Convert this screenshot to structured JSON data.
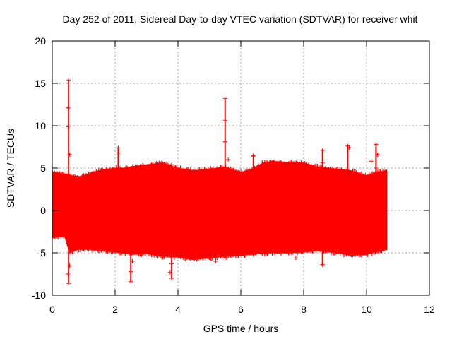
{
  "chart_data": {
    "type": "scatter",
    "title": "Day 252 of 2011, Sidereal Day-to-day VTEC variation (SDTVAR) for receiver whit",
    "xlabel": "GPS time / hours",
    "ylabel": "SDTVAR / TECUs",
    "xlim": [
      0,
      12
    ],
    "ylim": [
      -10,
      20
    ],
    "xticks": [
      0,
      2,
      4,
      6,
      8,
      10,
      12
    ],
    "yticks": [
      -10,
      -5,
      0,
      5,
      10,
      15,
      20
    ],
    "grid": true,
    "series_color": "#ff0000",
    "data_range_hours": [
      0,
      10.65
    ],
    "upper_envelope": [
      {
        "x": 0.0,
        "y": 4.6
      },
      {
        "x": 0.2,
        "y": 4.4
      },
      {
        "x": 0.45,
        "y": 4.3
      },
      {
        "x": 0.6,
        "y": 4.1
      },
      {
        "x": 0.9,
        "y": 4.0
      },
      {
        "x": 1.2,
        "y": 4.4
      },
      {
        "x": 1.6,
        "y": 4.8
      },
      {
        "x": 2.0,
        "y": 5.0
      },
      {
        "x": 2.3,
        "y": 5.0
      },
      {
        "x": 2.6,
        "y": 5.2
      },
      {
        "x": 3.0,
        "y": 5.4
      },
      {
        "x": 3.5,
        "y": 5.6
      },
      {
        "x": 4.0,
        "y": 5.0
      },
      {
        "x": 4.5,
        "y": 4.7
      },
      {
        "x": 5.0,
        "y": 4.9
      },
      {
        "x": 5.5,
        "y": 5.1
      },
      {
        "x": 6.0,
        "y": 4.5
      },
      {
        "x": 6.3,
        "y": 4.8
      },
      {
        "x": 6.7,
        "y": 5.6
      },
      {
        "x": 7.0,
        "y": 5.8
      },
      {
        "x": 7.5,
        "y": 5.7
      },
      {
        "x": 8.0,
        "y": 5.6
      },
      {
        "x": 8.5,
        "y": 5.1
      },
      {
        "x": 9.0,
        "y": 4.9
      },
      {
        "x": 9.5,
        "y": 4.7
      },
      {
        "x": 10.0,
        "y": 4.1
      },
      {
        "x": 10.3,
        "y": 4.5
      },
      {
        "x": 10.65,
        "y": 4.7
      }
    ],
    "lower_envelope": [
      {
        "x": 0.0,
        "y": -3.2
      },
      {
        "x": 0.4,
        "y": -3.1
      },
      {
        "x": 0.55,
        "y": -5.0
      },
      {
        "x": 0.8,
        "y": -4.6
      },
      {
        "x": 1.2,
        "y": -4.6
      },
      {
        "x": 2.0,
        "y": -4.9
      },
      {
        "x": 2.5,
        "y": -5.2
      },
      {
        "x": 3.0,
        "y": -5.1
      },
      {
        "x": 3.5,
        "y": -5.4
      },
      {
        "x": 4.0,
        "y": -5.5
      },
      {
        "x": 4.5,
        "y": -5.8
      },
      {
        "x": 5.0,
        "y": -5.6
      },
      {
        "x": 5.5,
        "y": -5.4
      },
      {
        "x": 6.0,
        "y": -5.3
      },
      {
        "x": 6.5,
        "y": -5.1
      },
      {
        "x": 7.0,
        "y": -5.0
      },
      {
        "x": 7.5,
        "y": -5.0
      },
      {
        "x": 8.0,
        "y": -4.9
      },
      {
        "x": 8.5,
        "y": -4.7
      },
      {
        "x": 9.0,
        "y": -5.0
      },
      {
        "x": 9.5,
        "y": -5.3
      },
      {
        "x": 10.0,
        "y": -5.2
      },
      {
        "x": 10.3,
        "y": -4.9
      },
      {
        "x": 10.65,
        "y": -4.6
      }
    ],
    "spikes": [
      {
        "x": 0.52,
        "y_min": -8.6,
        "y_max": 15.4
      },
      {
        "x": 2.1,
        "y_min": -4.8,
        "y_max": 7.4
      },
      {
        "x": 2.5,
        "y_min": -8.4,
        "y_max": 5.0
      },
      {
        "x": 3.8,
        "y_min": -8.0,
        "y_max": 5.4
      },
      {
        "x": 5.5,
        "y_min": -5.6,
        "y_max": 13.2
      },
      {
        "x": 6.4,
        "y_min": -5.2,
        "y_max": 6.5
      },
      {
        "x": 8.6,
        "y_min": -6.4,
        "y_max": 7.1
      },
      {
        "x": 9.4,
        "y_min": -5.0,
        "y_max": 7.6
      },
      {
        "x": 10.3,
        "y_min": -4.8,
        "y_max": 7.8
      }
    ],
    "outliers": [
      {
        "x": 0.5,
        "y": 12.1
      },
      {
        "x": 0.5,
        "y": 9.9
      },
      {
        "x": 0.55,
        "y": 6.6
      },
      {
        "x": 0.55,
        "y": -6.5
      },
      {
        "x": 0.5,
        "y": -7.5
      },
      {
        "x": 2.1,
        "y": 6.8
      },
      {
        "x": 2.55,
        "y": -6.0
      },
      {
        "x": 2.5,
        "y": -7.2
      },
      {
        "x": 3.8,
        "y": -6.3
      },
      {
        "x": 3.75,
        "y": -7.3
      },
      {
        "x": 5.5,
        "y": 10.6
      },
      {
        "x": 5.5,
        "y": 8.1
      },
      {
        "x": 5.6,
        "y": 6.0
      },
      {
        "x": 5.2,
        "y": -6.0
      },
      {
        "x": 5.55,
        "y": -5.6
      },
      {
        "x": 6.4,
        "y": 6.4
      },
      {
        "x": 7.75,
        "y": -5.6
      },
      {
        "x": 8.6,
        "y": 5.6
      },
      {
        "x": 8.6,
        "y": -6.4
      },
      {
        "x": 9.45,
        "y": 7.4
      },
      {
        "x": 10.15,
        "y": 5.8
      },
      {
        "x": 10.35,
        "y": 6.6
      },
      {
        "x": 10.3,
        "y": 5.0
      }
    ]
  }
}
